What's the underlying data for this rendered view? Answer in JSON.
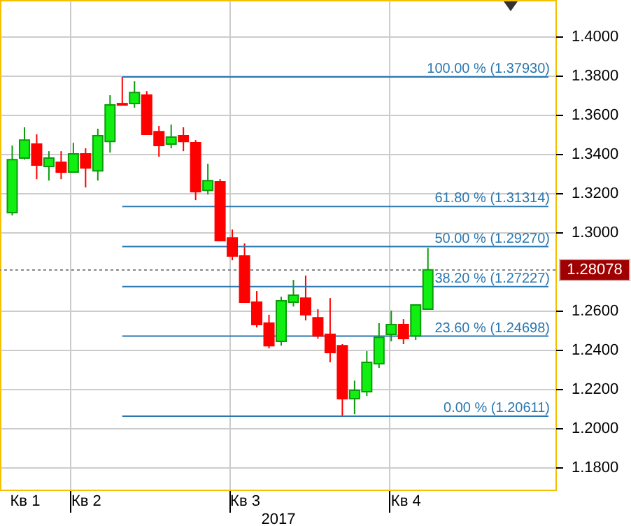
{
  "chart_data": {
    "type": "candlestick",
    "xlabel": "2017",
    "x": [
      "2017-02-27",
      "2017-03-06",
      "2017-03-13",
      "2017-03-20",
      "2017-03-27",
      "2017-04-03",
      "2017-04-10",
      "2017-04-17",
      "2017-04-24",
      "2017-05-01",
      "2017-05-08",
      "2017-05-15",
      "2017-05-22",
      "2017-05-29",
      "2017-06-05",
      "2017-06-12",
      "2017-06-19",
      "2017-06-26",
      "2017-07-03",
      "2017-07-10",
      "2017-07-17",
      "2017-07-24",
      "2017-07-31",
      "2017-08-07",
      "2017-08-14",
      "2017-08-21",
      "2017-08-28",
      "2017-09-04",
      "2017-09-11",
      "2017-09-18",
      "2017-09-25",
      "2017-10-02",
      "2017-10-09",
      "2017-10-16",
      "2017-10-23"
    ],
    "ohlc": [
      [
        1.31,
        1.3443,
        1.3086,
        1.3371
      ],
      [
        1.3379,
        1.3536,
        1.3371,
        1.3471
      ],
      [
        1.345,
        1.35,
        1.3271,
        1.3343
      ],
      [
        1.3336,
        1.3414,
        1.3264,
        1.3379
      ],
      [
        1.3357,
        1.3414,
        1.3271,
        1.3307
      ],
      [
        1.3307,
        1.3457,
        1.3307,
        1.34
      ],
      [
        1.34,
        1.3429,
        1.3229,
        1.3329
      ],
      [
        1.3314,
        1.3529,
        1.3264,
        1.3493
      ],
      [
        1.3464,
        1.37,
        1.3407,
        1.365
      ],
      [
        1.3657,
        1.3793,
        1.365,
        1.365
      ],
      [
        1.3657,
        1.3771,
        1.3636,
        1.3714
      ],
      [
        1.37,
        1.3721,
        1.35,
        1.35
      ],
      [
        1.3514,
        1.3543,
        1.3386,
        1.3443
      ],
      [
        1.345,
        1.355,
        1.3429,
        1.3486
      ],
      [
        1.3493,
        1.3536,
        1.3414,
        1.3464
      ],
      [
        1.3457,
        1.3471,
        1.3164,
        1.3207
      ],
      [
        1.3214,
        1.335,
        1.3193,
        1.3264
      ],
      [
        1.3257,
        1.3271,
        1.2957,
        1.2957
      ],
      [
        1.2971,
        1.3014,
        1.2857,
        1.2879
      ],
      [
        1.2879,
        1.2943,
        1.2643,
        1.2643
      ],
      [
        1.2643,
        1.27,
        1.2514,
        1.2529
      ],
      [
        1.2536,
        1.2579,
        1.2407,
        1.2421
      ],
      [
        1.2443,
        1.2671,
        1.2421,
        1.265
      ],
      [
        1.2643,
        1.2757,
        1.2621,
        1.2679
      ],
      [
        1.2664,
        1.2779,
        1.255,
        1.2579
      ],
      [
        1.2564,
        1.2607,
        1.2457,
        1.2471
      ],
      [
        1.2479,
        1.2664,
        1.2336,
        1.2386
      ],
      [
        1.2421,
        1.2429,
        1.2061,
        1.215
      ],
      [
        1.215,
        1.2243,
        1.2071,
        1.2193
      ],
      [
        1.2186,
        1.2393,
        1.2164,
        1.2336
      ],
      [
        1.2329,
        1.2536,
        1.2307,
        1.2464
      ],
      [
        1.2479,
        1.26,
        1.2443,
        1.2529
      ],
      [
        1.2529,
        1.2557,
        1.2429,
        1.2457
      ],
      [
        1.2471,
        1.2629,
        1.245,
        1.2629
      ],
      [
        1.2607,
        1.292,
        1.2607,
        1.2808
      ]
    ],
    "colors": [
      "#11ee11",
      "#11ee11",
      "#ff0000",
      "#11ee11",
      "#ff0000",
      "#11ee11",
      "#ff0000",
      "#11ee11",
      "#11ee11",
      "#ff0000",
      "#11ee11",
      "#ff0000",
      "#ff0000",
      "#11ee11",
      "#ff0000",
      "#ff0000",
      "#11ee11",
      "#ff0000",
      "#ff0000",
      "#ff0000",
      "#ff0000",
      "#ff0000",
      "#11ee11",
      "#11ee11",
      "#ff0000",
      "#ff0000",
      "#ff0000",
      "#ff0000",
      "#11ee11",
      "#11ee11",
      "#11ee11",
      "#11ee11",
      "#ff0000",
      "#11ee11",
      "#11ee11"
    ],
    "xlim": [
      "2017-02-24",
      "2017-12-31"
    ],
    "xticks": [
      {
        "value": "2017-03-06",
        "label": "Кв 1"
      },
      {
        "value": "2017-04-01",
        "label": null
      },
      {
        "value": "2017-04-10",
        "label": "Кв 2"
      },
      {
        "value": "2017-07-01",
        "label": null
      },
      {
        "value": "2017-07-10",
        "label": "Кв 3"
      },
      {
        "value": "2017-10-01",
        "label": null
      },
      {
        "value": "2017-10-10",
        "label": "Кв 4"
      }
    ],
    "ylim": [
      1.1686,
      1.4186
    ],
    "yticks": [
      {
        "value": 1.18,
        "label": "1.1800"
      },
      {
        "value": 1.2,
        "label": "1.2000"
      },
      {
        "value": 1.22,
        "label": "1.2200"
      },
      {
        "value": 1.24,
        "label": "1.2400"
      },
      {
        "value": 1.26,
        "label": "1.2600"
      },
      {
        "value": 1.3,
        "label": "1.3000"
      },
      {
        "value": 1.32,
        "label": "1.3200"
      },
      {
        "value": 1.34,
        "label": "1.3400"
      },
      {
        "value": 1.36,
        "label": "1.3600"
      },
      {
        "value": 1.38,
        "label": "1.3800"
      },
      {
        "value": 1.4,
        "label": "1.4000"
      }
    ],
    "grid": true,
    "ref_lines": [
      {
        "axis": "y",
        "value": 1.3793,
        "label": "100.00 % (1.37930)",
        "color": "#2a78b0",
        "line_style": "solid"
      },
      {
        "axis": "y",
        "value": 1.31314,
        "label": "61.80 % (1.31314)",
        "color": "#2a78b0",
        "line_style": "solid"
      },
      {
        "axis": "y",
        "value": 1.2927,
        "label": "50.00 % (1.29270)",
        "color": "#2a78b0",
        "line_style": "solid"
      },
      {
        "axis": "y",
        "value": 1.27227,
        "label": "38.20 % (1.27227)",
        "color": "#2a78b0",
        "line_style": "solid"
      },
      {
        "axis": "y",
        "value": 1.24698,
        "label": "23.60 % (1.24698)",
        "color": "#2a78b0",
        "line_style": "solid"
      },
      {
        "axis": "y",
        "value": 1.20611,
        "label": "0.00 % (1.20611)",
        "color": "#2a78b0",
        "line_style": "solid"
      },
      {
        "axis": "y",
        "value": 1.28078,
        "label": "1.28078",
        "color": "#888888",
        "line_style": "dotted"
      }
    ]
  }
}
